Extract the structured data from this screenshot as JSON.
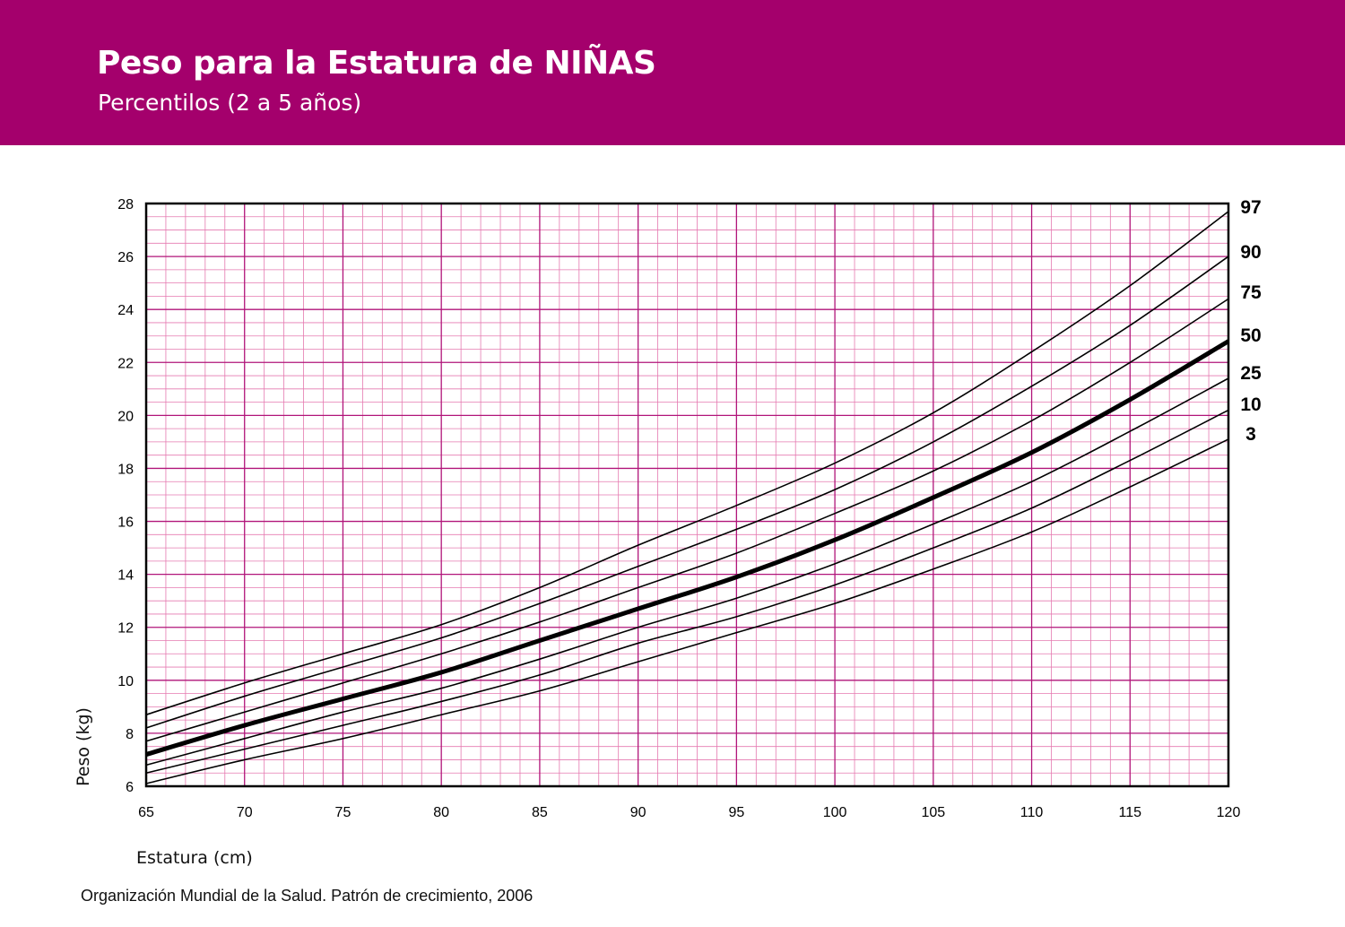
{
  "header": {
    "title": "Peso para la Estatura de NIÑAS",
    "subtitle": "Percentilos (2 a 5 años)"
  },
  "footer": {
    "source": "Organización Mundial de la Salud. Patrón de crecimiento, 2006"
  },
  "colors": {
    "banner": "#a4006c",
    "grid_major": "#b1157a",
    "grid_minor": "#e57ab0",
    "curve": "#000000"
  },
  "chart_data": {
    "type": "line",
    "title": "Peso para la Estatura de NIÑAS",
    "subtitle": "Percentilos (2 a 5 años)",
    "xlabel": "Estatura (cm)",
    "ylabel": "Peso (kg)",
    "xlim": [
      65,
      120
    ],
    "ylim": [
      6,
      28
    ],
    "x_ticks": [
      65,
      70,
      75,
      80,
      85,
      90,
      95,
      100,
      105,
      110,
      115,
      120
    ],
    "y_ticks": [
      6,
      8,
      10,
      12,
      14,
      16,
      18,
      20,
      22,
      24,
      26,
      28
    ],
    "x_minor_step": 1,
    "y_minor_step": 0.5,
    "grid": true,
    "legend": "right-edge series labels",
    "x": [
      65,
      70,
      75,
      80,
      85,
      90,
      95,
      100,
      105,
      110,
      115,
      120
    ],
    "series": [
      {
        "name": "97",
        "values": [
          8.7,
          9.9,
          11.0,
          12.1,
          13.5,
          15.1,
          16.6,
          18.2,
          20.1,
          22.4,
          24.9,
          27.7
        ]
      },
      {
        "name": "90",
        "values": [
          8.2,
          9.4,
          10.5,
          11.6,
          12.9,
          14.3,
          15.7,
          17.2,
          19.0,
          21.1,
          23.4,
          26.0
        ]
      },
      {
        "name": "75",
        "values": [
          7.7,
          8.8,
          9.9,
          11.0,
          12.2,
          13.5,
          14.8,
          16.3,
          17.9,
          19.8,
          22.0,
          24.4
        ]
      },
      {
        "name": "50",
        "values": [
          7.2,
          8.3,
          9.3,
          10.3,
          11.5,
          12.7,
          13.9,
          15.3,
          16.9,
          18.6,
          20.6,
          22.8
        ]
      },
      {
        "name": "25",
        "values": [
          6.8,
          7.8,
          8.8,
          9.7,
          10.8,
          12.0,
          13.1,
          14.4,
          15.9,
          17.5,
          19.4,
          21.4
        ]
      },
      {
        "name": "10",
        "values": [
          6.5,
          7.4,
          8.3,
          9.2,
          10.2,
          11.4,
          12.4,
          13.6,
          15.0,
          16.5,
          18.3,
          20.2
        ]
      },
      {
        "name": "3",
        "values": [
          6.1,
          7.0,
          7.8,
          8.7,
          9.6,
          10.7,
          11.8,
          12.9,
          14.2,
          15.6,
          17.3,
          19.1
        ]
      }
    ],
    "emphasized_series": "50"
  }
}
